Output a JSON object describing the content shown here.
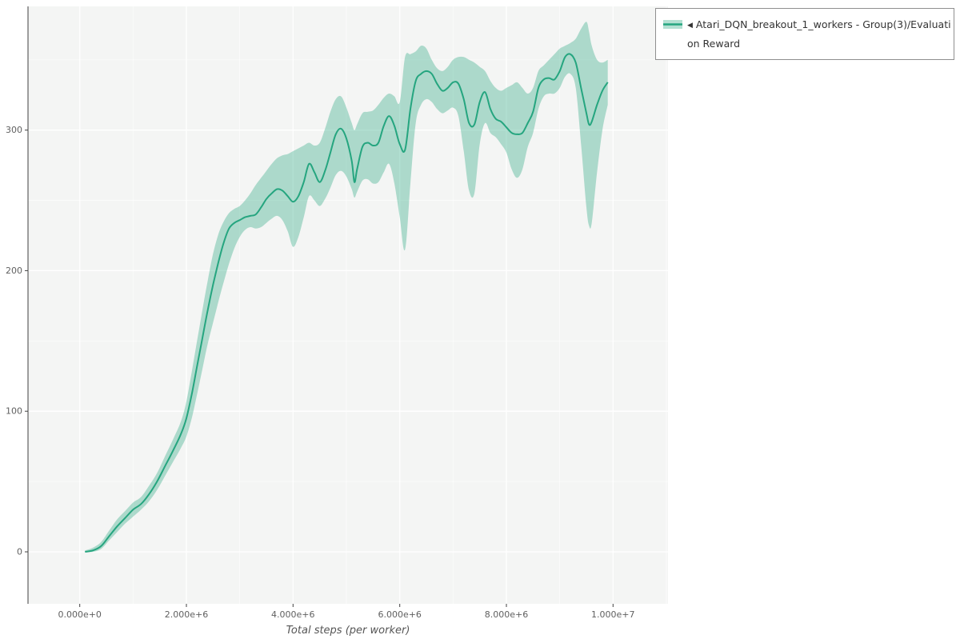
{
  "chart_data": {
    "type": "line",
    "band": true,
    "title": "",
    "xlabel": "Total steps (per worker)",
    "ylabel": "",
    "xlim_millions": [
      -0.97,
      11.03
    ],
    "ylim": [
      -37,
      388
    ],
    "grid": true,
    "panel_bg": "#f4f5f4",
    "grid_major_color": "#ffffff",
    "grid_minor_color": "#ffffff",
    "axis_color": "#404040",
    "tick_label_color": "#606060",
    "x_ticks": {
      "major": [
        {
          "value": 0,
          "label": "0.000e+0"
        },
        {
          "value": 2,
          "label": "2.000e+6"
        },
        {
          "value": 4,
          "label": "4.000e+6"
        },
        {
          "value": 6,
          "label": "6.000e+6"
        },
        {
          "value": 8,
          "label": "8.000e+6"
        },
        {
          "value": 10,
          "label": "1.000e+7"
        }
      ],
      "minor": [
        1,
        3,
        5,
        7,
        9,
        11
      ]
    },
    "y_ticks": {
      "major": [
        {
          "value": 0,
          "label": "0"
        },
        {
          "value": 100,
          "label": "100"
        },
        {
          "value": 200,
          "label": "200"
        },
        {
          "value": 300,
          "label": "300"
        }
      ],
      "minor": [
        50,
        150,
        250,
        350
      ]
    },
    "legend": {
      "position": "top-right",
      "collapse_icon": "◀",
      "lines": [
        "Atari_DQN_breakout_1_workers - Group(3)/Evaluati",
        "on Reward"
      ],
      "full_label": "Atari_DQN_breakout_1_workers - Group(3)/Evaluation Reward"
    },
    "series": [
      {
        "name": "Atari_DQN_breakout_1_workers - Group(3)/Evaluation Reward",
        "color": "#25a57f",
        "band_opacity": 0.35,
        "point_fields": [
          "x_millions",
          "mean",
          "lower",
          "upper"
        ],
        "points": [
          [
            0.1,
            0,
            0,
            1
          ],
          [
            0.25,
            1,
            0,
            3
          ],
          [
            0.4,
            4,
            2,
            7
          ],
          [
            0.55,
            11,
            8,
            15
          ],
          [
            0.7,
            18,
            14,
            23
          ],
          [
            0.85,
            24,
            20,
            29
          ],
          [
            1.0,
            30,
            25,
            35
          ],
          [
            1.15,
            34,
            30,
            39
          ],
          [
            1.3,
            41,
            36,
            47
          ],
          [
            1.45,
            50,
            44,
            56
          ],
          [
            1.6,
            61,
            54,
            68
          ],
          [
            1.75,
            72,
            64,
            80
          ],
          [
            1.9,
            84,
            74,
            93
          ],
          [
            2.0,
            95,
            82,
            107
          ],
          [
            2.1,
            112,
            95,
            128
          ],
          [
            2.2,
            132,
            112,
            150
          ],
          [
            2.3,
            152,
            130,
            172
          ],
          [
            2.4,
            172,
            148,
            193
          ],
          [
            2.5,
            190,
            163,
            212
          ],
          [
            2.6,
            206,
            178,
            226
          ],
          [
            2.7,
            220,
            192,
            235
          ],
          [
            2.8,
            230,
            205,
            241
          ],
          [
            2.9,
            234,
            216,
            244
          ],
          [
            3.0,
            236,
            224,
            246
          ],
          [
            3.1,
            238,
            229,
            250
          ],
          [
            3.2,
            239,
            231,
            255
          ],
          [
            3.3,
            240,
            230,
            261
          ],
          [
            3.4,
            245,
            231,
            266
          ],
          [
            3.5,
            251,
            234,
            271
          ],
          [
            3.6,
            255,
            237,
            276
          ],
          [
            3.7,
            258,
            239,
            280
          ],
          [
            3.8,
            257,
            236,
            282
          ],
          [
            3.9,
            253,
            228,
            283
          ],
          [
            4.0,
            249,
            217,
            285
          ],
          [
            4.1,
            253,
            224,
            287
          ],
          [
            4.2,
            263,
            238,
            289
          ],
          [
            4.3,
            276,
            253,
            291
          ],
          [
            4.4,
            270,
            250,
            289
          ],
          [
            4.5,
            263,
            246,
            291
          ],
          [
            4.6,
            271,
            251,
            301
          ],
          [
            4.7,
            284,
            259,
            313
          ],
          [
            4.8,
            297,
            268,
            322
          ],
          [
            4.9,
            301,
            271,
            324
          ],
          [
            5.0,
            294,
            267,
            316
          ],
          [
            5.1,
            278,
            258,
            305
          ],
          [
            5.15,
            263,
            252,
            300
          ],
          [
            5.2,
            272,
            256,
            304
          ],
          [
            5.3,
            288,
            264,
            312
          ],
          [
            5.4,
            291,
            265,
            313
          ],
          [
            5.5,
            289,
            262,
            314
          ],
          [
            5.6,
            291,
            263,
            318
          ],
          [
            5.7,
            303,
            270,
            323
          ],
          [
            5.8,
            310,
            276,
            326
          ],
          [
            5.9,
            303,
            262,
            324
          ],
          [
            6.0,
            290,
            238,
            320
          ],
          [
            6.1,
            286,
            215,
            352
          ],
          [
            6.2,
            315,
            262,
            354
          ],
          [
            6.3,
            335,
            305,
            356
          ],
          [
            6.4,
            340,
            318,
            360
          ],
          [
            6.5,
            342,
            322,
            358
          ],
          [
            6.6,
            340,
            320,
            350
          ],
          [
            6.7,
            333,
            315,
            344
          ],
          [
            6.8,
            328,
            312,
            342
          ],
          [
            6.9,
            330,
            314,
            345
          ],
          [
            7.0,
            334,
            316,
            350
          ],
          [
            7.1,
            333,
            310,
            352
          ],
          [
            7.2,
            322,
            285,
            352
          ],
          [
            7.3,
            305,
            257,
            350
          ],
          [
            7.4,
            304,
            255,
            348
          ],
          [
            7.5,
            320,
            290,
            345
          ],
          [
            7.6,
            327,
            305,
            342
          ],
          [
            7.7,
            315,
            298,
            335
          ],
          [
            7.8,
            308,
            295,
            330
          ],
          [
            7.9,
            306,
            290,
            328
          ],
          [
            8.0,
            302,
            284,
            330
          ],
          [
            8.1,
            298,
            272,
            332
          ],
          [
            8.2,
            297,
            266,
            334
          ],
          [
            8.3,
            298,
            272,
            330
          ],
          [
            8.4,
            305,
            288,
            326
          ],
          [
            8.5,
            313,
            298,
            330
          ],
          [
            8.6,
            330,
            315,
            342
          ],
          [
            8.7,
            336,
            324,
            346
          ],
          [
            8.8,
            337,
            326,
            350
          ],
          [
            8.9,
            336,
            326,
            354
          ],
          [
            9.0,
            342,
            330,
            358
          ],
          [
            9.1,
            352,
            338,
            360
          ],
          [
            9.2,
            354,
            340,
            362
          ],
          [
            9.3,
            348,
            330,
            365
          ],
          [
            9.4,
            330,
            290,
            372
          ],
          [
            9.5,
            312,
            245,
            377
          ],
          [
            9.55,
            304,
            232,
            370
          ],
          [
            9.6,
            306,
            234,
            360
          ],
          [
            9.7,
            318,
            270,
            350
          ],
          [
            9.8,
            328,
            300,
            348
          ],
          [
            9.9,
            334,
            318,
            350
          ]
        ]
      }
    ]
  }
}
